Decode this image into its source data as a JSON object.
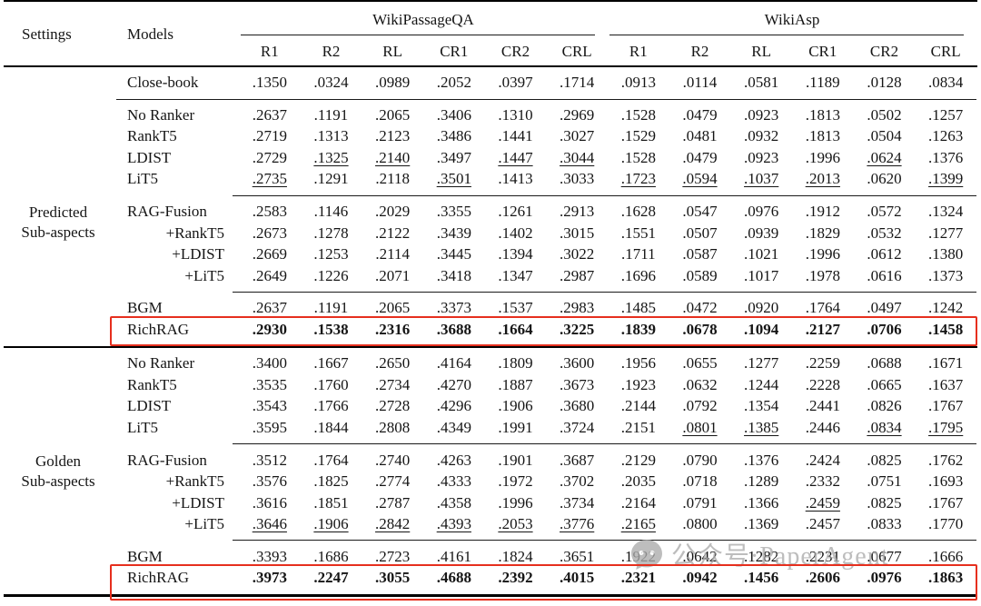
{
  "header": {
    "settings_label": "Settings",
    "models_label": "Models",
    "groups": [
      {
        "label": "WikiPassageQA"
      },
      {
        "label": "WikiAsp"
      }
    ],
    "metrics": [
      "R1",
      "R2",
      "RL",
      "CR1",
      "CR2",
      "CRL"
    ]
  },
  "sections": [
    {
      "setting_label": [],
      "groups": [
        {
          "rows": [
            {
              "model": "Close-book",
              "values": [
                ".1350",
                ".0324",
                ".0989",
                ".2052",
                ".0397",
                ".1714",
                ".0913",
                ".0114",
                ".0581",
                ".1189",
                ".0128",
                ".0834"
              ]
            }
          ]
        }
      ]
    },
    {
      "setting_label": [
        "Predicted",
        "Sub-aspects"
      ],
      "groups": [
        {
          "rows": [
            {
              "model": "No Ranker",
              "values": [
                ".2637",
                ".1191",
                ".2065",
                ".3406",
                ".1310",
                ".2969",
                ".1528",
                ".0479",
                ".0923",
                ".1813",
                ".0502",
                ".1257"
              ]
            },
            {
              "model": "RankT5",
              "values": [
                ".2719",
                ".1313",
                ".2123",
                ".3486",
                ".1441",
                ".3027",
                ".1529",
                ".0481",
                ".0932",
                ".1813",
                ".0504",
                ".1263"
              ]
            },
            {
              "model": "LDIST",
              "values": [
                ".2729",
                ".1325",
                ".2140",
                ".3497",
                ".1447",
                ".3044",
                ".1528",
                ".0479",
                ".0923",
                ".1996",
                ".0624",
                ".1376"
              ],
              "underline": [
                1,
                2,
                4,
                5,
                10
              ]
            },
            {
              "model": "LiT5",
              "values": [
                ".2735",
                ".1291",
                ".2118",
                ".3501",
                ".1413",
                ".3033",
                ".1723",
                ".0594",
                ".1037",
                ".2013",
                ".0620",
                ".1399"
              ],
              "underline": [
                0,
                3,
                6,
                7,
                8,
                9,
                11
              ]
            }
          ]
        },
        {
          "rows": [
            {
              "model": "RAG-Fusion",
              "values": [
                ".2583",
                ".1146",
                ".2029",
                ".3355",
                ".1261",
                ".2913",
                ".1628",
                ".0547",
                ".0976",
                ".1912",
                ".0572",
                ".1324"
              ]
            },
            {
              "model": "+RankT5",
              "indent": true,
              "values": [
                ".2673",
                ".1278",
                ".2122",
                ".3439",
                ".1402",
                ".3015",
                ".1551",
                ".0507",
                ".0939",
                ".1829",
                ".0532",
                ".1277"
              ]
            },
            {
              "model": "+LDIST",
              "indent": true,
              "values": [
                ".2669",
                ".1253",
                ".2114",
                ".3445",
                ".1394",
                ".3022",
                ".1711",
                ".0587",
                ".1021",
                ".1996",
                ".0612",
                ".1380"
              ]
            },
            {
              "model": "+LiT5",
              "indent": true,
              "values": [
                ".2649",
                ".1226",
                ".2071",
                ".3418",
                ".1347",
                ".2987",
                ".1696",
                ".0589",
                ".1017",
                ".1978",
                ".0616",
                ".1373"
              ]
            }
          ]
        },
        {
          "tight": true,
          "rows": [
            {
              "model": "BGM",
              "values": [
                ".2637",
                ".1191",
                ".2065",
                ".3373",
                ".1537",
                ".2983",
                ".1485",
                ".0472",
                ".0920",
                ".1764",
                ".0497",
                ".1242"
              ]
            },
            {
              "model": "RichRAG",
              "bold": true,
              "boxed": true,
              "values": [
                ".2930",
                ".1538",
                ".2316",
                ".3688",
                ".1664",
                ".3225",
                ".1839",
                ".0678",
                ".1094",
                ".2127",
                ".0706",
                ".1458"
              ]
            }
          ]
        }
      ]
    },
    {
      "setting_label": [
        "Golden",
        "Sub-aspects"
      ],
      "groups": [
        {
          "rows": [
            {
              "model": "No Ranker",
              "values": [
                ".3400",
                ".1667",
                ".2650",
                ".4164",
                ".1809",
                ".3600",
                ".1956",
                ".0655",
                ".1277",
                ".2259",
                ".0688",
                ".1671"
              ]
            },
            {
              "model": "RankT5",
              "values": [
                ".3535",
                ".1760",
                ".2734",
                ".4270",
                ".1887",
                ".3673",
                ".1923",
                ".0632",
                ".1244",
                ".2228",
                ".0665",
                ".1637"
              ]
            },
            {
              "model": "LDIST",
              "values": [
                ".3543",
                ".1766",
                ".2728",
                ".4296",
                ".1906",
                ".3680",
                ".2144",
                ".0792",
                ".1354",
                ".2441",
                ".0826",
                ".1767"
              ]
            },
            {
              "model": "LiT5",
              "values": [
                ".3595",
                ".1844",
                ".2808",
                ".4349",
                ".1991",
                ".3724",
                ".2151",
                ".0801",
                ".1385",
                ".2446",
                ".0834",
                ".1795"
              ],
              "underline": [
                7,
                8,
                10,
                11
              ]
            }
          ]
        },
        {
          "rows": [
            {
              "model": "RAG-Fusion",
              "values": [
                ".3512",
                ".1764",
                ".2740",
                ".4263",
                ".1901",
                ".3687",
                ".2129",
                ".0790",
                ".1376",
                ".2424",
                ".0825",
                ".1762"
              ]
            },
            {
              "model": "+RankT5",
              "indent": true,
              "values": [
                ".3576",
                ".1825",
                ".2774",
                ".4333",
                ".1972",
                ".3702",
                ".2035",
                ".0718",
                ".1289",
                ".2332",
                ".0751",
                ".1693"
              ]
            },
            {
              "model": "+LDIST",
              "indent": true,
              "values": [
                ".3616",
                ".1851",
                ".2787",
                ".4358",
                ".1996",
                ".3734",
                ".2164",
                ".0791",
                ".1366",
                ".2459",
                ".0825",
                ".1767"
              ],
              "underline": [
                9
              ]
            },
            {
              "model": "+LiT5",
              "indent": true,
              "values": [
                ".3646",
                ".1906",
                ".2842",
                ".4393",
                ".2053",
                ".3776",
                ".2165",
                ".0800",
                ".1369",
                ".2457",
                ".0833",
                ".1770"
              ],
              "underline": [
                0,
                1,
                2,
                3,
                4,
                5,
                6
              ]
            }
          ]
        },
        {
          "tight": true,
          "rows": [
            {
              "model": "BGM",
              "values": [
                ".3393",
                ".1686",
                ".2723",
                ".4161",
                ".1824",
                ".3651",
                ".1922",
                ".0642",
                ".1282",
                ".2231",
                ".0677",
                ".1666"
              ]
            },
            {
              "model": "RichRAG",
              "bold": true,
              "boxed": true,
              "values": [
                ".3973",
                ".2247",
                ".3055",
                ".4688",
                ".2392",
                ".4015",
                ".2321",
                ".0942",
                ".1456",
                ".2606",
                ".0976",
                ".1863"
              ]
            }
          ]
        }
      ]
    }
  ],
  "watermark": {
    "text": "公众号·PaperAgent"
  },
  "colors": {
    "highlight_red": "#e62f1e",
    "watermark_gray": "#ababab",
    "rule_black": "#000000"
  }
}
